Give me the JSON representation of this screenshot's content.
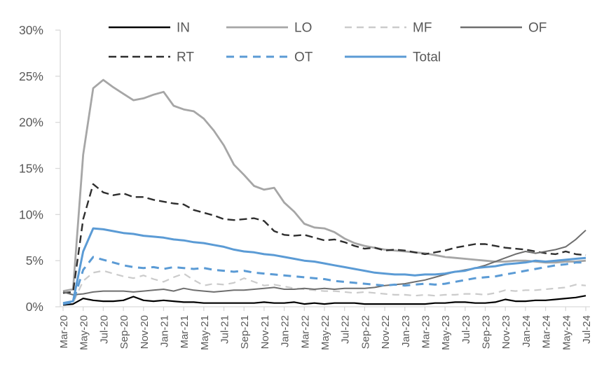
{
  "chart_data": {
    "type": "line",
    "title": "",
    "xlabel": "",
    "ylabel": "",
    "y_axis": {
      "unit": "%",
      "min": 0,
      "max": 30,
      "step": 5,
      "tick_labels": [
        "0%",
        "5%",
        "10%",
        "15%",
        "20%",
        "25%",
        "30%"
      ]
    },
    "x_axis": {
      "visible_tick_labels": [
        "Mar-20",
        "May-20",
        "Jul-20",
        "Sep-20",
        "Nov-20",
        "Jan-21",
        "Mar-21",
        "May-21",
        "Jul-21",
        "Sep-21",
        "Nov-21",
        "Jan-22",
        "Mar-22",
        "May-22",
        "Jul-22",
        "Sep-22",
        "Nov-22",
        "Jan-23",
        "Mar-23",
        "May-23",
        "Jul-23",
        "Sep-23",
        "Nov-23",
        "Jan-24",
        "Mar-24",
        "May-24",
        "Jul-24"
      ],
      "label_every_n_months": 2,
      "rotation_degrees": -90
    },
    "x": [
      "Mar-20",
      "Apr-20",
      "May-20",
      "Jun-20",
      "Jul-20",
      "Aug-20",
      "Sep-20",
      "Oct-20",
      "Nov-20",
      "Dec-20",
      "Jan-21",
      "Feb-21",
      "Mar-21",
      "Apr-21",
      "May-21",
      "Jun-21",
      "Jul-21",
      "Aug-21",
      "Sep-21",
      "Oct-21",
      "Nov-21",
      "Dec-21",
      "Jan-22",
      "Feb-22",
      "Mar-22",
      "Apr-22",
      "May-22",
      "Jun-22",
      "Jul-22",
      "Aug-22",
      "Sep-22",
      "Oct-22",
      "Nov-22",
      "Dec-22",
      "Jan-23",
      "Feb-23",
      "Mar-23",
      "Apr-23",
      "May-23",
      "Jun-23",
      "Jul-23",
      "Aug-23",
      "Sep-23",
      "Oct-23",
      "Nov-23",
      "Dec-23",
      "Jan-24",
      "Feb-24",
      "Mar-24",
      "Apr-24",
      "May-24",
      "Jun-24",
      "Jul-24"
    ],
    "legend": {
      "position": "top",
      "rows": [
        [
          "IN",
          "LO",
          "MF",
          "OF"
        ],
        [
          "RT",
          "OT",
          "Total"
        ]
      ]
    },
    "grid": false,
    "colors": {
      "accent_blue": "#5B9BD5",
      "gray_medium": "#A6A6A6",
      "gray_light": "#CBCBCB",
      "gray_dark": "#6E6E6E",
      "near_black": "#2E2E2E",
      "black": "#000000",
      "axis_line": "#D9D9D9",
      "axis_text": "#595959"
    },
    "series": [
      {
        "name": "IN",
        "color": "#000000",
        "dash": "solid",
        "width": 2.2,
        "values": [
          0.2,
          0.3,
          0.9,
          0.7,
          0.6,
          0.6,
          0.7,
          1.1,
          0.7,
          0.6,
          0.7,
          0.6,
          0.5,
          0.5,
          0.4,
          0.4,
          0.4,
          0.4,
          0.4,
          0.4,
          0.5,
          0.4,
          0.4,
          0.5,
          0.3,
          0.4,
          0.3,
          0.4,
          0.4,
          0.4,
          0.3,
          0.3,
          0.3,
          0.3,
          0.3,
          0.3,
          0.3,
          0.4,
          0.4,
          0.5,
          0.5,
          0.4,
          0.4,
          0.5,
          0.8,
          0.6,
          0.6,
          0.7,
          0.7,
          0.8,
          0.9,
          1.0,
          1.2
        ]
      },
      {
        "name": "LO",
        "color": "#A6A6A6",
        "dash": "solid",
        "width": 2.8,
        "values": [
          1.7,
          1.9,
          16.5,
          23.7,
          24.6,
          23.8,
          23.1,
          22.4,
          22.6,
          23.0,
          23.3,
          21.8,
          21.4,
          21.2,
          20.4,
          19.1,
          17.5,
          15.4,
          14.3,
          13.1,
          12.7,
          12.9,
          11.3,
          10.3,
          9.0,
          8.6,
          8.5,
          8.1,
          7.4,
          6.9,
          6.6,
          6.4,
          6.2,
          6.1,
          6.0,
          5.9,
          5.8,
          5.6,
          5.4,
          5.3,
          5.2,
          5.1,
          5.0,
          4.9,
          4.9,
          5.0,
          5.0,
          4.9,
          4.8,
          4.8,
          4.9,
          4.9,
          5.0
        ]
      },
      {
        "name": "MF",
        "color": "#CBCBCB",
        "dash": "dashed",
        "width": 2.2,
        "values": [
          0.3,
          0.4,
          2.8,
          3.7,
          3.9,
          3.6,
          3.3,
          3.1,
          3.4,
          3.0,
          2.7,
          3.2,
          3.6,
          2.9,
          2.3,
          2.5,
          2.4,
          2.6,
          3.1,
          2.7,
          2.3,
          2.4,
          2.2,
          2.0,
          1.9,
          1.8,
          1.7,
          1.7,
          1.6,
          1.5,
          1.6,
          1.5,
          1.4,
          1.3,
          1.3,
          1.2,
          1.3,
          1.2,
          1.3,
          1.3,
          1.4,
          1.4,
          1.3,
          1.5,
          1.8,
          1.7,
          1.8,
          1.8,
          1.9,
          2.0,
          2.1,
          2.4,
          2.3
        ]
      },
      {
        "name": "OF",
        "color": "#6E6E6E",
        "dash": "solid",
        "width": 2.0,
        "values": [
          1.6,
          1.3,
          1.4,
          1.6,
          1.7,
          1.7,
          1.7,
          1.6,
          1.7,
          1.8,
          1.9,
          1.7,
          2.0,
          1.8,
          1.7,
          1.6,
          1.7,
          1.8,
          1.8,
          1.9,
          2.0,
          2.1,
          1.9,
          1.9,
          2.0,
          1.9,
          2.0,
          1.9,
          2.0,
          2.0,
          2.0,
          2.1,
          2.3,
          2.4,
          2.5,
          2.7,
          2.9,
          3.2,
          3.5,
          3.8,
          4.0,
          4.2,
          4.5,
          4.9,
          5.3,
          5.7,
          6.0,
          5.8,
          6.0,
          6.2,
          6.5,
          7.3,
          8.3
        ]
      },
      {
        "name": "RT",
        "color": "#2E2E2E",
        "dash": "dashed",
        "width": 2.4,
        "values": [
          1.5,
          1.6,
          9.5,
          13.3,
          12.4,
          12.1,
          12.3,
          11.9,
          11.9,
          11.6,
          11.4,
          11.2,
          11.1,
          10.5,
          10.2,
          9.9,
          9.5,
          9.4,
          9.5,
          9.6,
          9.3,
          8.2,
          7.8,
          7.7,
          7.8,
          7.5,
          7.2,
          7.3,
          7.0,
          6.6,
          6.3,
          6.4,
          6.1,
          6.2,
          6.1,
          5.9,
          5.7,
          5.9,
          6.1,
          6.4,
          6.6,
          6.8,
          6.8,
          6.6,
          6.4,
          6.3,
          6.2,
          6.0,
          5.8,
          5.7,
          6.0,
          5.7,
          5.6
        ]
      },
      {
        "name": "OT",
        "color": "#5B9BD5",
        "dash": "dashed",
        "width": 3.0,
        "values": [
          0.3,
          0.5,
          4.0,
          5.4,
          5.1,
          4.8,
          4.5,
          4.3,
          4.2,
          4.3,
          4.1,
          4.3,
          4.2,
          4.1,
          4.2,
          4.0,
          3.9,
          3.8,
          3.9,
          3.7,
          3.6,
          3.5,
          3.4,
          3.3,
          3.2,
          3.1,
          3.0,
          2.8,
          2.7,
          2.6,
          2.5,
          2.4,
          2.3,
          2.4,
          2.3,
          2.4,
          2.5,
          2.4,
          2.5,
          2.7,
          2.9,
          3.1,
          3.2,
          3.3,
          3.5,
          3.7,
          3.9,
          4.1,
          4.3,
          4.5,
          4.6,
          4.8,
          4.8
        ]
      },
      {
        "name": "Total",
        "color": "#5B9BD5",
        "dash": "solid",
        "width": 3.0,
        "values": [
          0.4,
          0.6,
          6.0,
          8.5,
          8.4,
          8.2,
          8.0,
          7.9,
          7.7,
          7.6,
          7.5,
          7.3,
          7.2,
          7.0,
          6.9,
          6.7,
          6.5,
          6.2,
          6.0,
          5.9,
          5.7,
          5.6,
          5.4,
          5.2,
          5.0,
          4.9,
          4.7,
          4.5,
          4.3,
          4.1,
          3.9,
          3.7,
          3.6,
          3.5,
          3.5,
          3.4,
          3.5,
          3.5,
          3.6,
          3.8,
          3.9,
          4.2,
          4.3,
          4.4,
          4.6,
          4.7,
          4.8,
          5.0,
          4.9,
          5.0,
          5.1,
          5.2,
          5.3
        ]
      }
    ]
  }
}
